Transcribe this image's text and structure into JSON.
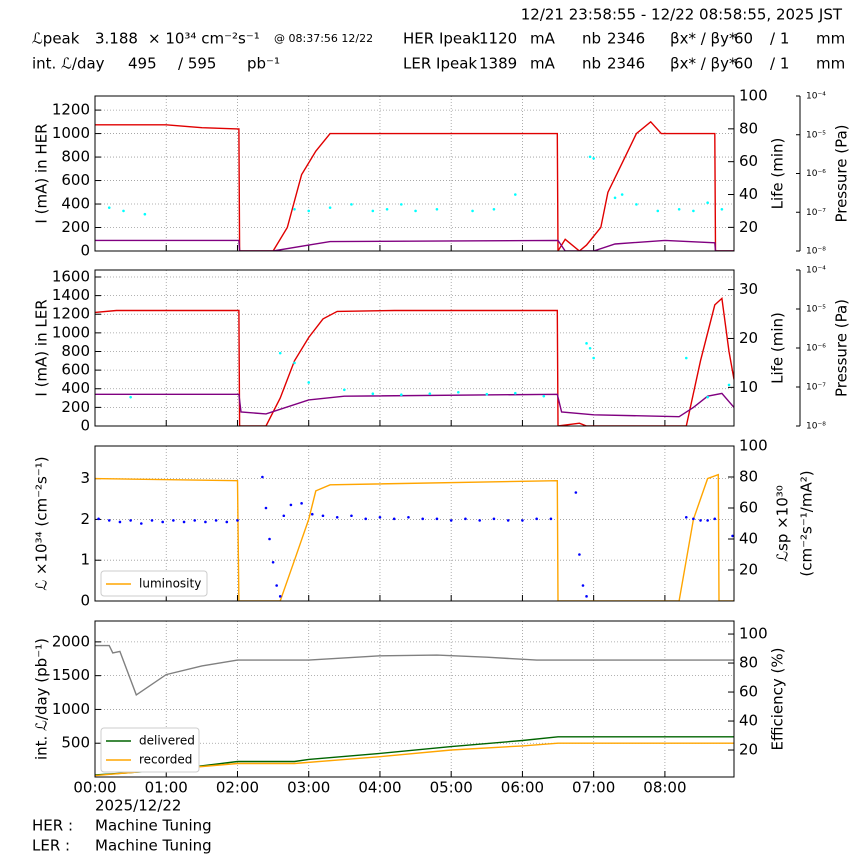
{
  "header": {
    "period": "12/21 23:58:55 - 12/22 08:58:55, 2025 JST",
    "row1": [
      "ℒpeak",
      "3.188",
      "× 10³⁴ cm⁻²s⁻¹",
      "@ 08:37:56 12/22",
      "HER Ipeak",
      "1120",
      "mA",
      "nb",
      "2346",
      "βx* / βy*",
      "60",
      "/ 1",
      "mm"
    ],
    "row2": [
      "int. ℒ/day",
      "495",
      "/ 595",
      "pb⁻¹",
      "LER Ipeak",
      "1389",
      "mA",
      "nb",
      "2346",
      "βx* / βy*",
      "60",
      "/ 1",
      "mm"
    ]
  },
  "chart_data": [
    {
      "type": "line",
      "ylabel": "I (mA) in HER",
      "y2label": "Life (min)",
      "y3label": "Pressure (Pa)",
      "grid": true,
      "ylim": [
        0,
        1320
      ],
      "yticks": [
        0,
        200,
        400,
        600,
        800,
        1000,
        1200
      ],
      "y2lim": [
        5.6,
        100
      ],
      "y2ticks": [
        20,
        40,
        60,
        80,
        100
      ],
      "y3lim": [
        1e-08,
        0.0001
      ],
      "y3scale": "log",
      "y3ticks": [
        {
          "value": 1e-08,
          "label": "10⁻⁸"
        },
        {
          "value": 1e-07,
          "label": "10⁻⁷"
        },
        {
          "value": 1e-06,
          "label": "10⁻⁶"
        },
        {
          "value": 1e-05,
          "label": "10⁻⁵"
        },
        {
          "value": 0.0001,
          "label": "10⁻⁴"
        }
      ],
      "series": [
        {
          "color": "#e00000",
          "x": [
            0,
            1.0,
            1.5,
            2.0,
            2.02,
            2.03,
            2.5,
            2.7,
            2.9,
            3.1,
            3.3,
            4.0,
            5.0,
            6.0,
            6.49,
            6.5,
            6.6,
            6.8,
            6.9,
            7.1,
            7.2,
            7.4,
            7.6,
            7.8,
            7.95,
            8.1,
            8.7,
            8.71,
            8.97
          ],
          "values": [
            1075,
            1075,
            1050,
            1040,
            1040,
            0,
            0,
            200,
            650,
            850,
            1000,
            1000,
            1000,
            1000,
            1000,
            0,
            100,
            0,
            50,
            200,
            500,
            750,
            1000,
            1100,
            1000,
            1000,
            1000,
            0,
            0
          ]
        },
        {
          "color": "#800080",
          "x": [
            0,
            2.02,
            2.03,
            2.5,
            3.0,
            3.3,
            6.5,
            6.6,
            7.0,
            7.3,
            8.0,
            8.7,
            8.71,
            8.97
          ],
          "values": [
            90,
            90,
            0,
            0,
            50,
            80,
            90,
            0,
            0,
            60,
            90,
            70,
            0,
            0
          ]
        },
        {
          "color": "#00ffff",
          "marker": true,
          "axis": "y2",
          "x": [
            0.2,
            0.4,
            0.7,
            2.8,
            3.0,
            3.3,
            3.6,
            3.9,
            4.1,
            4.3,
            4.5,
            4.8,
            5.3,
            5.6,
            5.9,
            6.95,
            7.0,
            7.3,
            7.4,
            7.6,
            7.9,
            8.2,
            8.4,
            8.6,
            8.8
          ],
          "values": [
            32,
            30,
            28,
            31,
            30,
            32,
            34,
            30,
            31,
            34,
            30,
            31,
            30,
            31,
            40,
            63,
            62,
            38,
            40,
            34,
            30,
            31,
            30,
            35,
            31
          ]
        }
      ]
    },
    {
      "type": "line",
      "ylabel": "I (mA) in LER",
      "y2label": "Life (min)",
      "y3label": "Pressure (Pa)",
      "grid": true,
      "ylim": [
        0,
        1675
      ],
      "yticks": [
        0,
        200,
        400,
        600,
        800,
        1000,
        1200,
        1400,
        1600
      ],
      "y2lim": [
        2.1,
        34
      ],
      "y2ticks": [
        10,
        20,
        30
      ],
      "y3lim": [
        1e-08,
        0.0001
      ],
      "y3scale": "log",
      "y3ticks": [
        {
          "value": 1e-08,
          "label": "10⁻⁸"
        },
        {
          "value": 1e-07,
          "label": "10⁻⁷"
        },
        {
          "value": 1e-06,
          "label": "10⁻⁶"
        },
        {
          "value": 1e-05,
          "label": "10⁻⁵"
        },
        {
          "value": 0.0001,
          "label": "10⁻⁴"
        }
      ],
      "series": [
        {
          "color": "#e00000",
          "x": [
            0,
            0.3,
            2.02,
            2.03,
            2.4,
            2.6,
            2.8,
            3.0,
            3.2,
            3.4,
            4.2,
            6.49,
            6.5,
            6.8,
            6.9,
            8.3,
            8.5,
            8.7,
            8.8,
            8.9,
            8.97
          ],
          "values": [
            1220,
            1240,
            1240,
            0,
            0,
            300,
            700,
            950,
            1150,
            1230,
            1240,
            1240,
            0,
            30,
            0,
            0,
            700,
            1300,
            1370,
            800,
            500
          ]
        },
        {
          "color": "#800080",
          "x": [
            0,
            2.02,
            2.05,
            2.4,
            3.0,
            3.5,
            6.49,
            6.55,
            7.0,
            8.2,
            8.4,
            8.6,
            8.8,
            8.97
          ],
          "values": [
            340,
            340,
            150,
            130,
            280,
            320,
            340,
            150,
            120,
            100,
            200,
            320,
            350,
            200
          ]
        },
        {
          "color": "#00ffff",
          "marker": true,
          "axis": "y2",
          "x": [
            0.5,
            2.6,
            2.8,
            3.0,
            3.5,
            3.9,
            4.3,
            4.7,
            5.1,
            5.5,
            5.9,
            6.3,
            6.9,
            6.95,
            7.0,
            8.3,
            8.6,
            8.9
          ],
          "values": [
            8,
            17,
            15,
            11,
            9.5,
            8.7,
            8.5,
            8.7,
            9,
            8.6,
            8.8,
            8.2,
            19,
            18,
            16,
            16,
            8,
            10.5
          ]
        }
      ]
    },
    {
      "type": "line",
      "ylabel": "ℒ ×10³⁴ (cm⁻²s⁻¹)",
      "y2label": [
        "ℒsp ×10³⁰",
        "(cm⁻²s⁻¹/mA²)"
      ],
      "grid": true,
      "legend": "lower left",
      "ylim": [
        0,
        3.8
      ],
      "yticks": [
        0,
        1,
        2,
        3
      ],
      "y2lim": [
        0,
        100
      ],
      "y2ticks": [
        20,
        40,
        60,
        80,
        100
      ],
      "series": [
        {
          "name": "luminosity",
          "color": "#ffa500",
          "x": [
            0,
            2.0,
            2.02,
            2.6,
            2.8,
            3.0,
            3.1,
            3.3,
            6.49,
            6.5,
            8.2,
            8.4,
            8.6,
            8.75,
            8.76,
            8.97
          ],
          "values": [
            3.0,
            2.95,
            0,
            0,
            1.0,
            2.0,
            2.7,
            2.85,
            2.95,
            0,
            0,
            2.0,
            3.0,
            3.1,
            0,
            0
          ]
        },
        {
          "color": "#0000ff",
          "marker": true,
          "axis": "y2",
          "x": [
            0.05,
            0.2,
            0.35,
            0.5,
            0.65,
            0.8,
            0.95,
            1.1,
            1.25,
            1.4,
            1.55,
            1.7,
            1.85,
            2.0,
            2.35,
            2.4,
            2.45,
            2.5,
            2.55,
            2.6,
            2.65,
            2.75,
            2.9,
            3.05,
            3.2,
            3.4,
            3.6,
            3.8,
            4.0,
            4.2,
            4.4,
            4.6,
            4.8,
            5.0,
            5.2,
            5.4,
            5.6,
            5.8,
            6.0,
            6.2,
            6.4,
            6.75,
            6.8,
            6.85,
            6.9,
            8.3,
            8.4,
            8.5,
            8.6,
            8.7,
            8.95
          ],
          "values": [
            53,
            52,
            51,
            52,
            50,
            52,
            51,
            52,
            51,
            52,
            51,
            52,
            51,
            52,
            80,
            60,
            40,
            25,
            10,
            3,
            55,
            62,
            63,
            56,
            55,
            54,
            55,
            53,
            54,
            53,
            54,
            53,
            53,
            52,
            53,
            52,
            53,
            52,
            52,
            53,
            53,
            70,
            30,
            10,
            3,
            54,
            53,
            52,
            52,
            53,
            42
          ]
        }
      ]
    },
    {
      "type": "line",
      "ylabel": "int. ℒ/day (pb⁻¹)",
      "y2label": "Efficiency (%)",
      "grid": true,
      "legend": "lower left",
      "ylim": [
        0,
        2309
      ],
      "yticks": [
        500,
        1000,
        1500,
        2000
      ],
      "y2lim": [
        1.4,
        109
      ],
      "y2ticks": [
        20,
        40,
        60,
        80,
        100
      ],
      "xlim": [
        0,
        8.97
      ],
      "xticks": [
        {
          "value": 0,
          "label": "00:00"
        },
        {
          "value": 1,
          "label": "01:00"
        },
        {
          "value": 2,
          "label": "02:00"
        },
        {
          "value": 3,
          "label": "03:00"
        },
        {
          "value": 4,
          "label": "04:00"
        },
        {
          "value": 5,
          "label": "05:00"
        },
        {
          "value": 6,
          "label": "06:00"
        },
        {
          "value": 7,
          "label": "07:00"
        },
        {
          "value": 8,
          "label": "08:00"
        }
      ],
      "x_date": "2025/12/22",
      "series": [
        {
          "name": "delivered",
          "color": "#006400",
          "x": [
            0,
            1.0,
            2.0,
            2.8,
            3.0,
            4.0,
            5.0,
            6.0,
            6.5,
            8.97
          ],
          "values": [
            30,
            100,
            230,
            230,
            260,
            350,
            450,
            540,
            595,
            595
          ]
        },
        {
          "name": "recorded",
          "color": "#ffa500",
          "x": [
            0,
            2.0,
            2.8,
            4.0,
            5.0,
            6.0,
            6.5,
            8.97
          ],
          "values": [
            20,
            200,
            200,
            300,
            400,
            460,
            500,
            500
          ]
        },
        {
          "color": "#808080",
          "axis": "y2",
          "x": [
            0,
            0.2,
            0.25,
            0.35,
            0.58,
            1.0,
            1.5,
            2.0,
            3.0,
            4.0,
            4.8,
            5.5,
            6.2,
            7.0,
            8.97
          ],
          "values": [
            92,
            92,
            87,
            88,
            58,
            72,
            78,
            82,
            82,
            85,
            85.5,
            84,
            82,
            82,
            82
          ]
        }
      ]
    }
  ],
  "footer": {
    "her_label": "HER :",
    "her_state": "Machine Tuning",
    "ler_label": "LER :",
    "ler_state": "Machine Tuning"
  }
}
